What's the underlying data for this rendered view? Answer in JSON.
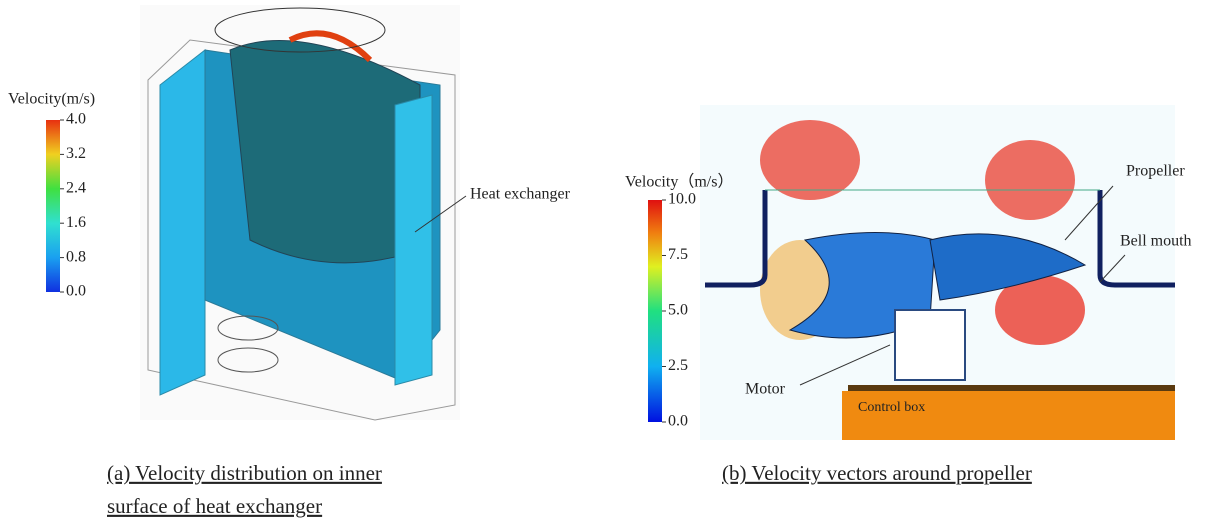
{
  "panel_a": {
    "legend_title": "Velocity(m/s)",
    "ticks": [
      {
        "value": 4,
        "label": "4.0"
      },
      {
        "value": 3.2,
        "label": "3.2"
      },
      {
        "value": 2.4,
        "label": "2.4"
      },
      {
        "value": 1.6,
        "label": "1.6"
      },
      {
        "value": 0.8,
        "label": "0.8"
      },
      {
        "value": 0,
        "label": "0.0"
      }
    ],
    "annotation": "Heat exchanger",
    "caption_lines": [
      "(a) Velocity distribution on inner",
      "surface of  heat exchanger"
    ]
  },
  "panel_b": {
    "legend_title": "Velocity（m/s）",
    "ticks": [
      {
        "value": 10,
        "label": "10.0"
      },
      {
        "value": 7.5,
        "label": "7.5"
      },
      {
        "value": 5,
        "label": "5.0"
      },
      {
        "value": 2.5,
        "label": "2.5"
      },
      {
        "value": 0,
        "label": "0.0"
      }
    ],
    "annotations": {
      "propeller": "Propeller",
      "bell_mouth": "Bell mouth",
      "motor": "Motor",
      "control_box": "Control box"
    },
    "caption": "(b) Velocity vectors around propeller"
  }
}
